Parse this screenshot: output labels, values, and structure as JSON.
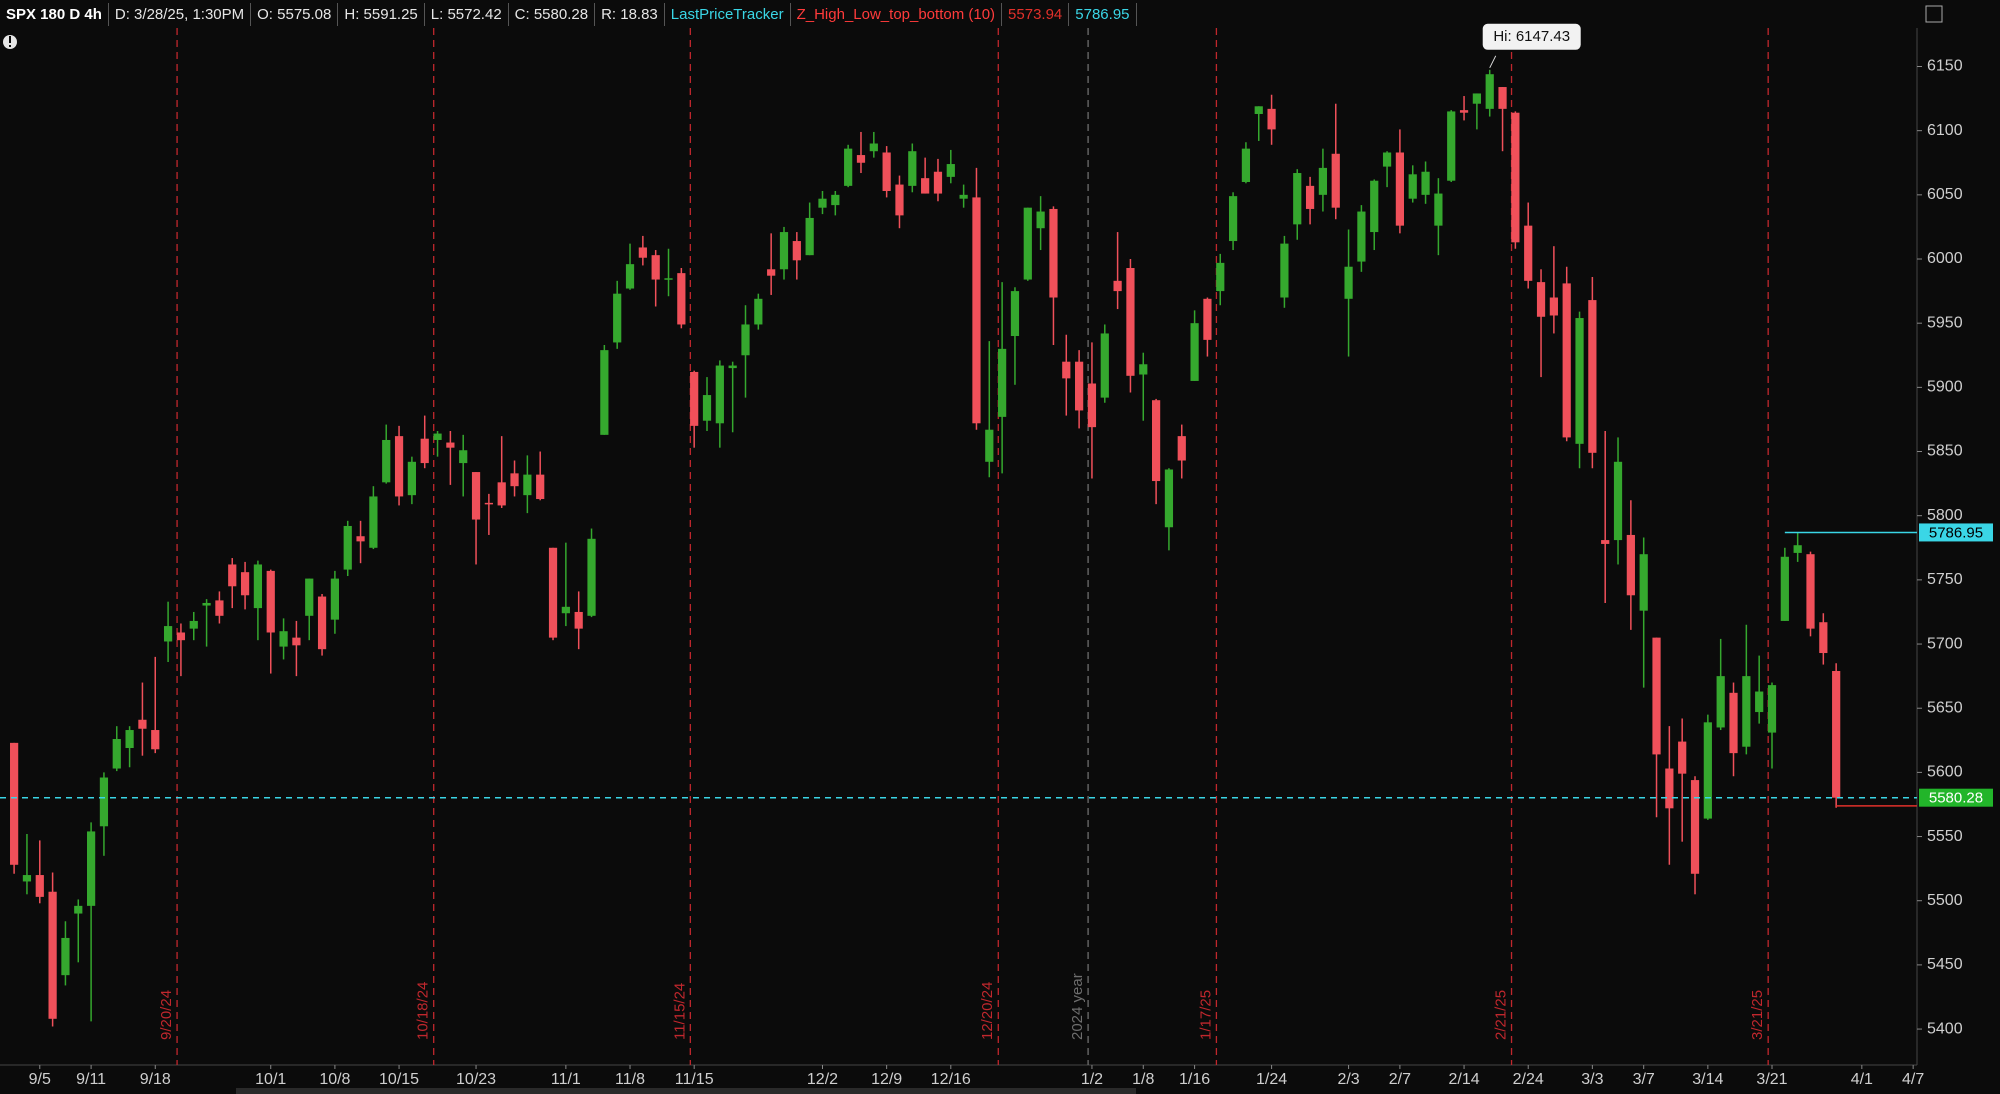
{
  "header": [
    {
      "text": "SPX 180 D 4h",
      "color": "#ffffff"
    },
    {
      "text": "D: 3/28/25, 1:30PM",
      "color": "#e6e6e6"
    },
    {
      "text": "O: 5575.08",
      "color": "#e6e6e6"
    },
    {
      "text": "H: 5591.25",
      "color": "#e6e6e6"
    },
    {
      "text": "L: 5572.42",
      "color": "#e6e6e6"
    },
    {
      "text": "C: 5580.28",
      "color": "#e6e6e6"
    },
    {
      "text": "R: 18.83",
      "color": "#e6e6e6"
    },
    {
      "text": "LastPriceTracker",
      "color": "#3ad6e6"
    },
    {
      "text": "Z_High_Low_top_bottom (10)",
      "color": "#ff3b3b"
    }
  ],
  "chart_data": {
    "type": "candlestick",
    "up_color": "#35a82e",
    "down_color": "#f0505a",
    "annotation": "Hi: 6147.43",
    "x": [
      -2,
      -1,
      0,
      1,
      2,
      3,
      4,
      5,
      6,
      7,
      8,
      9,
      10,
      11,
      12,
      13,
      14,
      15,
      16,
      17,
      18,
      19,
      20,
      21,
      22,
      23,
      24,
      25,
      26,
      27,
      28,
      29,
      30,
      31,
      32,
      33,
      34,
      35,
      36,
      37,
      38,
      39,
      40,
      41,
      42,
      43,
      44,
      45,
      46,
      47,
      48,
      49,
      50,
      51,
      52,
      53,
      54,
      55,
      56,
      57,
      58,
      59,
      60,
      61,
      62,
      63,
      64,
      65,
      66,
      67,
      68,
      69,
      70,
      71,
      72,
      73,
      74,
      75,
      76,
      77,
      78,
      79,
      80,
      81,
      82,
      83,
      84,
      85,
      86,
      87,
      88,
      89,
      90,
      91,
      92,
      93,
      94,
      95,
      96,
      97,
      98,
      99,
      100,
      101,
      102,
      103,
      104,
      105,
      106,
      107,
      108,
      109,
      110,
      111,
      112,
      113,
      114,
      115,
      116,
      117,
      118,
      119,
      120,
      121,
      122,
      123,
      124,
      125,
      126,
      127,
      128,
      129,
      130,
      131,
      132,
      133,
      134,
      135,
      136,
      137,
      138,
      139,
      140
    ],
    "open": [
      5623,
      5515,
      5520,
      5507,
      5442,
      5490,
      5496,
      5558,
      5603,
      5619,
      5641,
      5633,
      5702,
      5709,
      5712,
      5730,
      5734,
      5762,
      5756,
      5728,
      5757,
      5698,
      5705,
      5722,
      5737,
      5719,
      5758,
      5784,
      5775,
      5826,
      5862,
      5816,
      5860,
      5859,
      5857,
      5841,
      5834,
      5810,
      5826,
      5833,
      5816,
      5832,
      5775,
      5724,
      5725,
      5722,
      5863,
      5935,
      5977,
      6009,
      6003,
      5985,
      5989,
      5912,
      5874,
      5872,
      5915,
      5925,
      5949,
      5992,
      5992,
      6014,
      6003,
      6040,
      6042,
      6057,
      6081,
      6084,
      6083,
      6058,
      6057,
      6063,
      6068,
      6064,
      6047,
      6048,
      5842,
      5877,
      5940,
      5984,
      6024,
      6039,
      5920,
      5920,
      5903,
      5892,
      5983,
      5993,
      5910,
      5890,
      5791,
      5862,
      5905,
      5969,
      5975,
      6014,
      6060,
      6113,
      6117,
      5970,
      6027,
      6057,
      6050,
      6082,
      5969,
      5998,
      6021,
      6072,
      6083,
      6047,
      6050,
      6026,
      6061,
      6116,
      6121,
      6117,
      6134,
      6114,
      6026,
      5982,
      5970,
      5981,
      5856,
      5968,
      5781,
      5781,
      5785,
      5726,
      5705,
      5603,
      5624,
      5594,
      5564,
      5635,
      5662,
      5620,
      5647,
      5631,
      5718,
      5771,
      5770,
      5717,
      5679
    ],
    "high": [
      5623,
      5552,
      5547,
      5522,
      5484,
      5501,
      5561,
      5600,
      5636,
      5636,
      5670,
      5690,
      5733,
      5716,
      5725,
      5735,
      5741,
      5767,
      5764,
      5765,
      5758,
      5720,
      5718,
      5751,
      5739,
      5757,
      5796,
      5796,
      5823,
      5871,
      5870,
      5846,
      5878,
      5866,
      5866,
      5863,
      5834,
      5817,
      5862,
      5843,
      5847,
      5850,
      5775,
      5779,
      5741,
      5790,
      5933,
      5983,
      6012,
      6018,
      6007,
      6008,
      5993,
      5913,
      5908,
      5921,
      5920,
      5964,
      5973,
      6020,
      6025,
      6021,
      6044,
      6053,
      6053,
      6089,
      6099,
      6099,
      6088,
      6065,
      6090,
      6079,
      6078,
      6085,
      6058,
      6071,
      5936,
      5982,
      5978,
      6040,
      6049,
      6041,
      5941,
      5929,
      5935,
      5949,
      6021,
      6000,
      5927,
      5891,
      5837,
      5871,
      5960,
      5970,
      6004,
      6052,
      6091,
      6119,
      6128,
      6018,
      6070,
      6064,
      6086,
      6121,
      6023,
      6042,
      6062,
      6084,
      6101,
      6073,
      6076,
      6063,
      6116,
      6127,
      6129,
      6147.43,
      6134,
      6115,
      6044,
      5992,
      6010,
      5994,
      5959,
      5986,
      5866,
      5861,
      5812,
      5783,
      5705,
      5636,
      5642,
      5597,
      5645,
      5704,
      5670,
      5715,
      5691,
      5670,
      5775,
      5787,
      5772,
      5724,
      5685
    ],
    "low": [
      5521,
      5505,
      5498,
      5402,
      5434,
      5452,
      5406,
      5535,
      5601,
      5604,
      5613,
      5615,
      5686,
      5675,
      5703,
      5698,
      5716,
      5728,
      5727,
      5703,
      5677,
      5688,
      5675,
      5703,
      5691,
      5708,
      5753,
      5763,
      5774,
      5825,
      5808,
      5809,
      5837,
      5846,
      5824,
      5815,
      5762,
      5785,
      5806,
      5815,
      5802,
      5812,
      5703,
      5714,
      5696,
      5721,
      5863,
      5930,
      5976,
      5995,
      5963,
      5971,
      5946,
      5853,
      5866,
      5853,
      5865,
      5892,
      5945,
      5972,
      5984,
      5984,
      6003,
      6035,
      6034,
      6056,
      6067,
      6079,
      6048,
      6024,
      6052,
      6051,
      6045,
      6059,
      6040,
      5867,
      5830,
      5833,
      5902,
      5983,
      6007,
      5933,
      5878,
      5868,
      5829,
      5888,
      5961,
      5896,
      5874,
      5809,
      5773,
      5829,
      5905,
      5924,
      5964,
      6007,
      6059,
      6092,
      6089,
      5962,
      6015,
      6027,
      6037,
      6031,
      5924,
      5990,
      6007,
      6056,
      6020,
      6044,
      6043,
      6003,
      6060,
      6108,
      6101,
      6111,
      6084,
      6008,
      5977,
      5908,
      5942,
      5858,
      5837,
      5837,
      5732,
      5762,
      5711,
      5666,
      5565,
      5528,
      5546,
      5505,
      5563,
      5633,
      5597,
      5614,
      5638,
      5603,
      5718,
      5764,
      5706,
      5684,
      5572.42
    ],
    "close": [
      5528,
      5520,
      5503,
      5408,
      5471,
      5496,
      5554,
      5596,
      5626,
      5633,
      5634,
      5618,
      5714,
      5703,
      5718,
      5732,
      5722,
      5745,
      5738,
      5762,
      5709,
      5710,
      5699,
      5751,
      5696,
      5751,
      5792,
      5780,
      5815,
      5859,
      5815,
      5842,
      5841,
      5864,
      5853,
      5851,
      5797,
      5809,
      5808,
      5823,
      5832,
      5813,
      5705,
      5729,
      5712,
      5782,
      5929,
      5973,
      5996,
      6001,
      5984,
      5985,
      5949,
      5870,
      5894,
      5917,
      5917,
      5949,
      5969,
      5987,
      6021,
      5999,
      6032,
      6047,
      6050,
      6086,
      6075,
      6090,
      6053,
      6034,
      6084,
      6051,
      6051,
      6074,
      6050,
      5872,
      5867,
      5930,
      5975,
      6040,
      6037,
      5970,
      5907,
      5882,
      5869,
      5942,
      5975,
      5909,
      5918,
      5827,
      5836,
      5843,
      5950,
      5937,
      5997,
      6049,
      6086,
      6119,
      6101,
      6012,
      6067,
      6039,
      6071,
      6040,
      5994,
      6037,
      6061,
      6083,
      6026,
      6066,
      6068,
      6051,
      6115,
      6114,
      6129,
      6144,
      6117,
      6013,
      5983,
      5955,
      5956,
      5861,
      5954,
      5849,
      5778,
      5842,
      5738,
      5770,
      5614,
      5572,
      5599,
      5521,
      5639,
      5675,
      5615,
      5675,
      5663,
      5668,
      5768,
      5777,
      5712,
      5693,
      5580.28
    ],
    "xlim": [
      -3.1,
      146.3
    ],
    "ylim": [
      5372,
      6180
    ],
    "yticks": [
      5400,
      5450,
      5500,
      5550,
      5600,
      5650,
      5700,
      5750,
      5800,
      5850,
      5900,
      5950,
      6000,
      6050,
      6100,
      6150
    ],
    "xticks": [
      {
        "value": 0,
        "label": "9/5"
      },
      {
        "value": 4,
        "label": "9/11"
      },
      {
        "value": 9,
        "label": "9/18"
      },
      {
        "value": 18,
        "label": "10/1"
      },
      {
        "value": 23,
        "label": "10/8"
      },
      {
        "value": 28,
        "label": "10/15"
      },
      {
        "value": 34,
        "label": "10/23"
      },
      {
        "value": 41,
        "label": "11/1"
      },
      {
        "value": 46,
        "label": "11/8"
      },
      {
        "value": 51,
        "label": "11/15"
      },
      {
        "value": 61,
        "label": "12/2"
      },
      {
        "value": 66,
        "label": "12/9"
      },
      {
        "value": 71,
        "label": "12/16"
      },
      {
        "value": 82,
        "label": "1/2"
      },
      {
        "value": 86,
        "label": "1/8"
      },
      {
        "value": 90,
        "label": "1/16"
      },
      {
        "value": 96,
        "label": "1/24"
      },
      {
        "value": 102,
        "label": "2/3"
      },
      {
        "value": 106,
        "label": "2/7"
      },
      {
        "value": 111,
        "label": "2/14"
      },
      {
        "value": 116,
        "label": "2/24"
      },
      {
        "value": 121,
        "label": "3/3"
      },
      {
        "value": 125,
        "label": "3/7"
      },
      {
        "value": 130,
        "label": "3/14"
      },
      {
        "value": 135,
        "label": "3/21"
      },
      {
        "value": 142,
        "label": "4/1"
      },
      {
        "value": 146,
        "label": "4/7"
      }
    ],
    "events": [
      {
        "x": 11,
        "label": "9/20/24",
        "color": "#c0272d"
      },
      {
        "x": 31,
        "label": "10/18/24",
        "color": "#c0272d"
      },
      {
        "x": 51,
        "label": "11/15/24",
        "color": "#c0272d"
      },
      {
        "x": 75,
        "label": "12/20/24",
        "color": "#c0272d"
      },
      {
        "x": 82,
        "label": "2024 year",
        "color": "#6e6e6e"
      },
      {
        "x": 92,
        "label": "1/17/25",
        "color": "#c0272d"
      },
      {
        "x": 115,
        "label": "2/21/25",
        "color": "#c0272d"
      },
      {
        "x": 135,
        "label": "3/21/25",
        "color": "#c0272d"
      }
    ],
    "price_lines": [
      {
        "value": 5580.28,
        "color": "#3ad6e6",
        "dashed": true,
        "badge_color": "#22b52a"
      },
      {
        "value": 5786.95,
        "color": "#3ad6e6",
        "x": 136,
        "badge_color": "#3ad6e6"
      },
      {
        "value": 5573.94,
        "color": "#e0302a",
        "x": 140
      }
    ]
  }
}
